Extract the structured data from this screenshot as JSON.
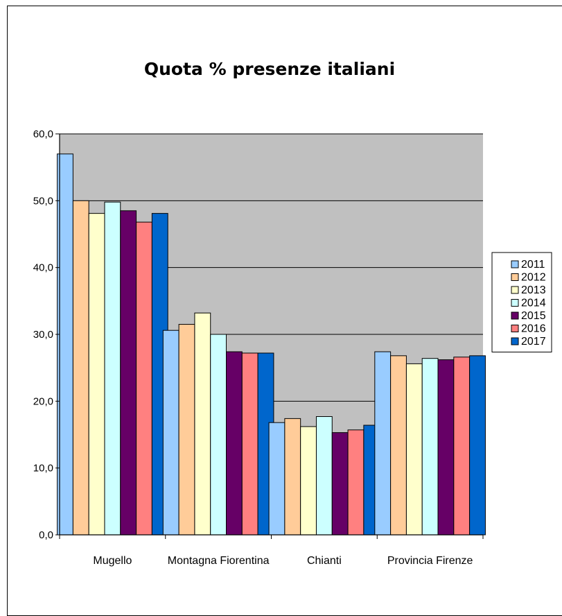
{
  "chart_data": {
    "type": "bar",
    "title": "Quota % presenze italiani",
    "xlabel": "",
    "ylabel": "",
    "ylim": [
      0,
      60
    ],
    "yticks": [
      "0,0",
      "10,0",
      "20,0",
      "30,0",
      "40,0",
      "50,0",
      "60,0"
    ],
    "grid": true,
    "legend_position": "right",
    "categories": [
      "Mugello",
      "Montagna Fiorentina",
      "Chianti",
      "Provincia Firenze"
    ],
    "series": [
      {
        "name": "2011",
        "color": "#99ccff",
        "values": [
          57.0,
          30.6,
          16.8,
          27.4
        ]
      },
      {
        "name": "2012",
        "color": "#ffcc99",
        "values": [
          50.0,
          31.5,
          17.4,
          26.8
        ]
      },
      {
        "name": "2013",
        "color": "#ffffcc",
        "values": [
          48.1,
          33.2,
          16.2,
          25.6
        ]
      },
      {
        "name": "2014",
        "color": "#ccffff",
        "values": [
          49.8,
          30.0,
          17.7,
          26.4
        ]
      },
      {
        "name": "2015",
        "color": "#660066",
        "values": [
          48.5,
          27.4,
          15.3,
          26.2
        ]
      },
      {
        "name": "2016",
        "color": "#ff8080",
        "values": [
          46.8,
          27.2,
          15.7,
          26.6
        ]
      },
      {
        "name": "2017",
        "color": "#0066cc",
        "values": [
          48.1,
          27.2,
          16.4,
          26.8
        ]
      }
    ],
    "plot_background": "#c0c0c0"
  }
}
